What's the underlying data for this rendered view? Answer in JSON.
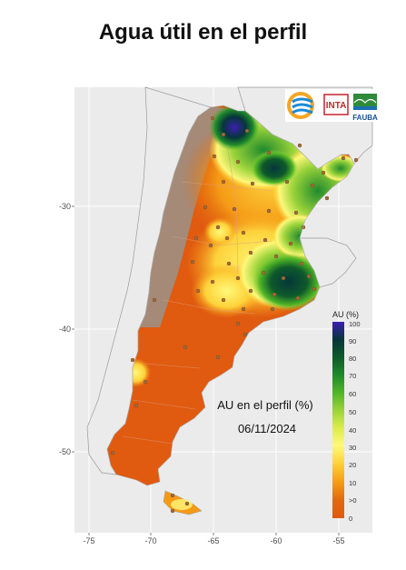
{
  "title": "Agua útil en el perfil",
  "map": {
    "annotation_line1": "AU en el perfil (%)",
    "annotation_line2": "06/11/2024",
    "y_ticks": [
      "-30",
      "-40",
      "-50"
    ],
    "x_ticks": [
      "-75",
      "-70",
      "-65",
      "-60",
      "-55"
    ],
    "legend": {
      "title": "AU (%)",
      "labels": [
        "100",
        "90",
        "80",
        "70",
        "60",
        "50",
        "40",
        "30",
        "20",
        "10",
        ">0",
        "0"
      ],
      "colors": [
        "#3a1fb0",
        "#06363a",
        "#0e5a2b",
        "#1f8a2c",
        "#4fb526",
        "#9ad33a",
        "#dcec4c",
        "#fff87a",
        "#fdd23a",
        "#f59a16",
        "#e2680c",
        "#e05a10"
      ]
    },
    "logos": {
      "inta": "INTA",
      "fauba": "FAUBA"
    }
  }
}
